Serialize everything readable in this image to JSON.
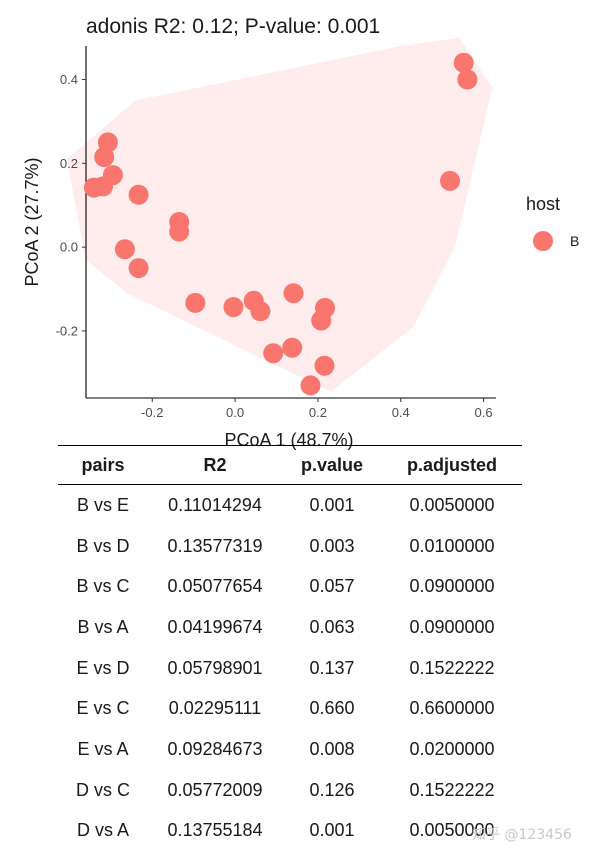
{
  "chart_data": {
    "type": "scatter",
    "title": "adonis R2: 0.12; P-value: 0.001",
    "xlabel": "PCoA 1 (48.7%)",
    "ylabel": "PCoA 2 (27.7%)",
    "xlim": [
      -0.36,
      0.63
    ],
    "ylim": [
      -0.36,
      0.48
    ],
    "xticks": [
      -0.2,
      0.0,
      0.2,
      0.4,
      0.6
    ],
    "xtick_labels": [
      "-0.2",
      "0.0",
      "0.2",
      "0.4",
      "0.6"
    ],
    "yticks": [
      -0.2,
      0.0,
      0.2,
      0.4
    ],
    "ytick_labels": [
      "-0.2",
      "0.0",
      "0.2",
      "0.4"
    ],
    "grid": false,
    "legend_position": "right",
    "legend_title": "host",
    "series": [
      {
        "name": "B",
        "color": "#F8766D",
        "ellipse_color": "#F8766D",
        "points": [
          {
            "x": 0.552,
            "y": 0.44
          },
          {
            "x": 0.561,
            "y": 0.4
          },
          {
            "x": 0.519,
            "y": 0.158
          },
          {
            "x": -0.307,
            "y": 0.25
          },
          {
            "x": -0.316,
            "y": 0.215
          },
          {
            "x": -0.295,
            "y": 0.172
          },
          {
            "x": -0.319,
            "y": 0.145
          },
          {
            "x": -0.341,
            "y": 0.142
          },
          {
            "x": -0.233,
            "y": 0.125
          },
          {
            "x": -0.135,
            "y": 0.06
          },
          {
            "x": -0.135,
            "y": 0.037
          },
          {
            "x": -0.266,
            "y": -0.005
          },
          {
            "x": -0.233,
            "y": -0.05
          },
          {
            "x": -0.096,
            "y": -0.133
          },
          {
            "x": -0.004,
            "y": -0.143
          },
          {
            "x": 0.045,
            "y": -0.128
          },
          {
            "x": 0.061,
            "y": -0.153
          },
          {
            "x": 0.141,
            "y": -0.11
          },
          {
            "x": 0.217,
            "y": -0.145
          },
          {
            "x": 0.208,
            "y": -0.175
          },
          {
            "x": 0.092,
            "y": -0.253
          },
          {
            "x": 0.138,
            "y": -0.24
          },
          {
            "x": 0.216,
            "y": -0.283
          },
          {
            "x": 0.182,
            "y": -0.33
          }
        ]
      }
    ]
  },
  "table": {
    "headers": [
      "pairs",
      "R2",
      "p.value",
      "p.adjusted"
    ],
    "rows": [
      [
        "B vs E",
        "0.11014294",
        "0.001",
        "0.0050000"
      ],
      [
        "B vs D",
        "0.13577319",
        "0.003",
        "0.0100000"
      ],
      [
        "B vs C",
        "0.05077654",
        "0.057",
        "0.0900000"
      ],
      [
        "B vs A",
        "0.04199674",
        "0.063",
        "0.0900000"
      ],
      [
        "E vs D",
        "0.05798901",
        "0.137",
        "0.1522222"
      ],
      [
        "E vs C",
        "0.02295111",
        "0.660",
        "0.6600000"
      ],
      [
        "E vs A",
        "0.09284673",
        "0.008",
        "0.0200000"
      ],
      [
        "D vs C",
        "0.05772009",
        "0.126",
        "0.1522222"
      ],
      [
        "D vs A",
        "0.13755184",
        "0.001",
        "0.0050000"
      ]
    ]
  },
  "watermark": "知乎 @123456"
}
